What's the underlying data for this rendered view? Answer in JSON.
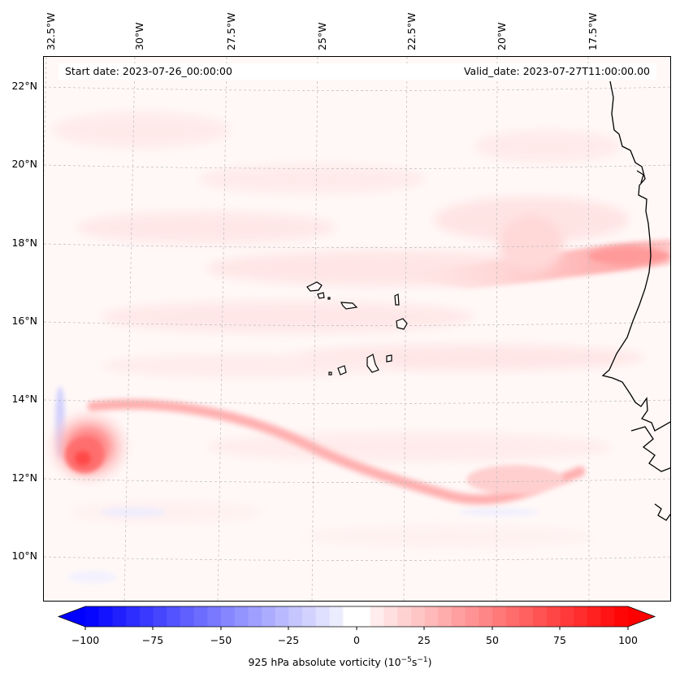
{
  "map": {
    "start_date": "Start date: 2023-07-26_00:00:00",
    "valid_date": "Valid_date: 2023-07-27T11:00:00.00",
    "longitude_labels": [
      "32.5°W",
      "30°W",
      "27.5°W",
      "25°W",
      "22.5°W",
      "20°W",
      "17.5°W"
    ],
    "latitude_labels": [
      "22°N",
      "20°N",
      "18°N",
      "16°N",
      "14°N",
      "12°N",
      "10°N"
    ],
    "features": [
      "Cape Verde islands",
      "West African coastline",
      "vorticity maximum near 12.5°N 31°W",
      "vorticity band along 18°N near coast",
      "vorticity streak 13°N to 11.5°N"
    ]
  },
  "colorbar": {
    "min": -100,
    "max": 100,
    "tick_labels": [
      "−100",
      "−75",
      "−50",
      "−25",
      "0",
      "25",
      "50",
      "75",
      "100"
    ],
    "label_main": "925 hPa absolute vorticity (10",
    "label_exp1": "−5",
    "label_mid": "s",
    "label_exp2": "−1",
    "label_end": ")",
    "color_negative": "#0000ff",
    "color_zero": "#ffffff",
    "color_positive": "#ff0000"
  }
}
